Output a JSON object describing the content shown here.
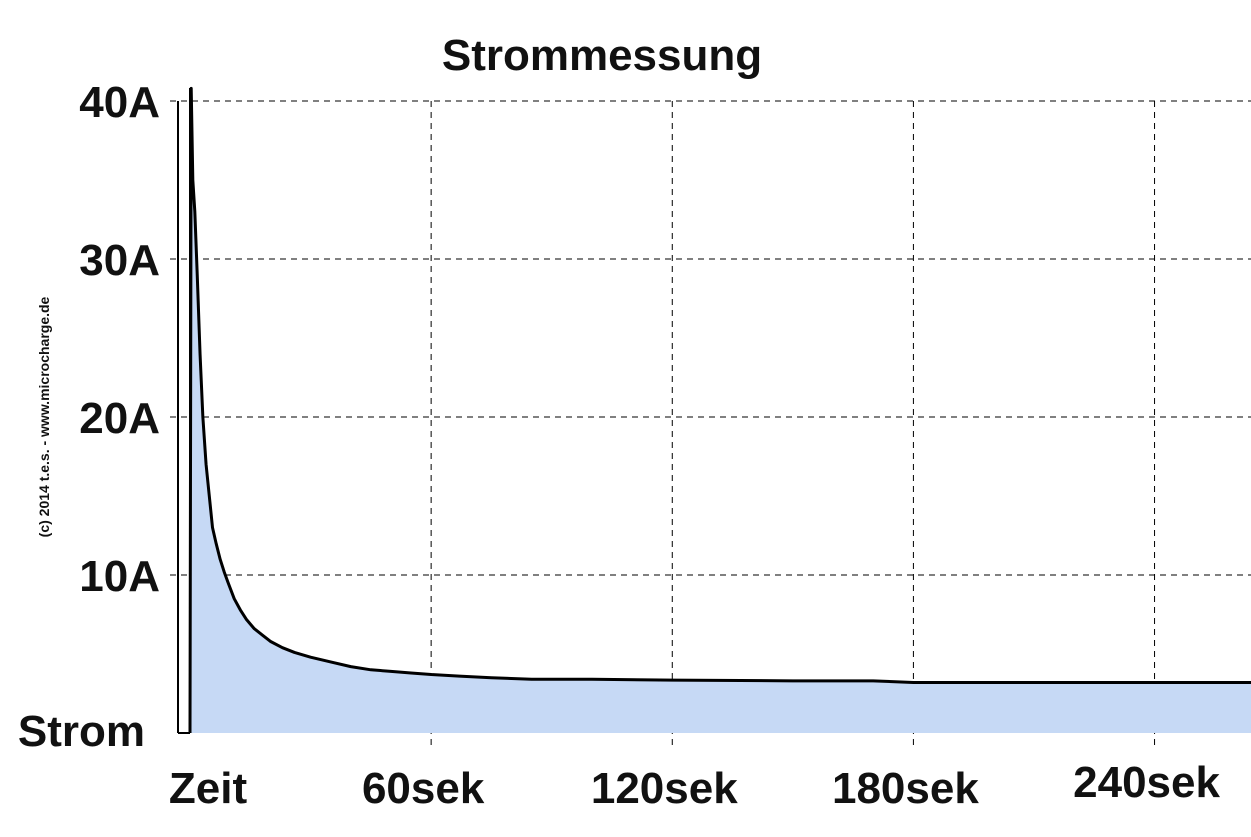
{
  "chart_data": {
    "type": "area",
    "title": "Strommessung",
    "xlabel": "Zeit",
    "ylabel": "Strom",
    "copyright": "(c) 2014 t.e.s. - www.microcharge.de",
    "x_unit": "sek",
    "y_unit": "A",
    "xlim": [
      0,
      264
    ],
    "ylim": [
      0,
      40
    ],
    "x_ticks": [
      60,
      120,
      180,
      240
    ],
    "x_tick_labels": [
      "60sek",
      "120sek",
      "180sek",
      "240sek"
    ],
    "y_ticks": [
      10,
      20,
      30,
      40
    ],
    "y_tick_labels": [
      "10A",
      "20A",
      "30A",
      "40A"
    ],
    "grid": true,
    "fill_color": "#c6d9f5",
    "line_color": "#000000",
    "series": [
      {
        "x": [
          0,
          0.3,
          0.7,
          1.2,
          1.8,
          2.5,
          3.2,
          4.0,
          4.8,
          5.6,
          6.5,
          7.5,
          8.5,
          9.5,
          11,
          12.5,
          14,
          16,
          18,
          20,
          23,
          26,
          30,
          35,
          40,
          45,
          50,
          55,
          60,
          67,
          75,
          85,
          100,
          120,
          150,
          170,
          180,
          200,
          230,
          264
        ],
        "y": [
          0,
          40.8,
          35.0,
          33.0,
          29.0,
          24.0,
          20.0,
          17.0,
          15.0,
          13.0,
          12.0,
          11.0,
          10.2,
          9.5,
          8.5,
          7.8,
          7.2,
          6.6,
          6.2,
          5.8,
          5.4,
          5.1,
          4.8,
          4.5,
          4.2,
          4.0,
          3.9,
          3.8,
          3.7,
          3.6,
          3.5,
          3.4,
          3.4,
          3.35,
          3.3,
          3.3,
          3.2,
          3.2,
          3.2,
          3.2
        ]
      }
    ]
  }
}
